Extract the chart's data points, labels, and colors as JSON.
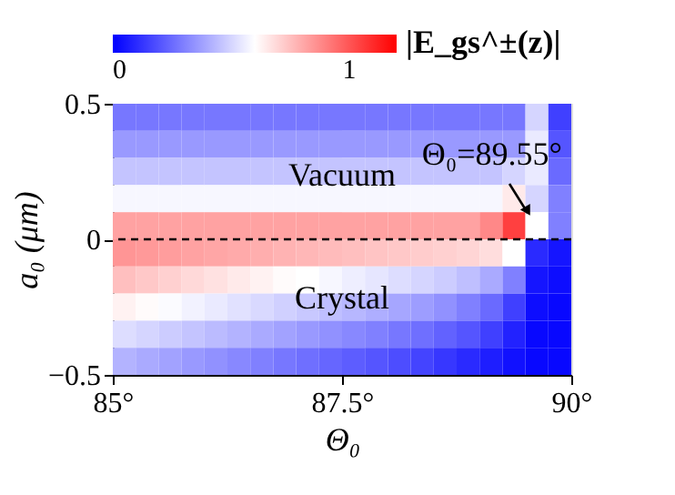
{
  "chart_data": {
    "type": "heatmap",
    "xlabel": "Θ₀",
    "ylabel": "a₀ (μm)",
    "clabel": "|E_gs^±(z)|",
    "x": [
      85.125,
      85.375,
      85.625,
      85.875,
      86.125,
      86.375,
      86.625,
      86.875,
      87.125,
      87.375,
      87.625,
      87.875,
      88.125,
      88.375,
      88.625,
      88.875,
      89.125,
      89.375,
      89.625,
      89.875
    ],
    "y": [
      0.45,
      0.35,
      0.25,
      0.15,
      0.05,
      -0.05,
      -0.15,
      -0.25,
      -0.35,
      -0.45
    ],
    "cells": [
      [
        0.28,
        0.28,
        0.28,
        0.28,
        0.28,
        0.28,
        0.28,
        0.28,
        0.28,
        0.28,
        0.28,
        0.28,
        0.28,
        0.28,
        0.28,
        0.28,
        0.28,
        0.28,
        0.5,
        0.15
      ],
      [
        0.36,
        0.36,
        0.36,
        0.36,
        0.36,
        0.36,
        0.36,
        0.36,
        0.36,
        0.36,
        0.36,
        0.36,
        0.36,
        0.36,
        0.36,
        0.36,
        0.36,
        0.36,
        0.55,
        0.2
      ],
      [
        0.46,
        0.46,
        0.46,
        0.46,
        0.46,
        0.46,
        0.46,
        0.46,
        0.46,
        0.46,
        0.46,
        0.46,
        0.46,
        0.46,
        0.46,
        0.46,
        0.46,
        0.5,
        0.55,
        0.25
      ],
      [
        0.58,
        0.58,
        0.58,
        0.58,
        0.58,
        0.58,
        0.58,
        0.58,
        0.58,
        0.58,
        0.58,
        0.58,
        0.58,
        0.58,
        0.58,
        0.58,
        0.58,
        0.65,
        0.5,
        0.3
      ],
      [
        0.82,
        0.82,
        0.82,
        0.82,
        0.82,
        0.82,
        0.82,
        0.82,
        0.82,
        0.82,
        0.82,
        0.82,
        0.82,
        0.82,
        0.82,
        0.82,
        0.88,
        1.05,
        0.6,
        0.3
      ],
      [
        0.85,
        0.84,
        0.83,
        0.82,
        0.81,
        0.8,
        0.79,
        0.78,
        0.77,
        0.76,
        0.75,
        0.74,
        0.73,
        0.72,
        0.71,
        0.7,
        0.68,
        0.6,
        0.1,
        0.05
      ],
      [
        0.75,
        0.73,
        0.71,
        0.69,
        0.67,
        0.65,
        0.63,
        0.61,
        0.6,
        0.58,
        0.56,
        0.54,
        0.52,
        0.5,
        0.48,
        0.45,
        0.4,
        0.3,
        0.05,
        0.03
      ],
      [
        0.63,
        0.61,
        0.59,
        0.57,
        0.55,
        0.53,
        0.51,
        0.49,
        0.47,
        0.45,
        0.43,
        0.41,
        0.39,
        0.37,
        0.34,
        0.3,
        0.25,
        0.15,
        0.03,
        0.02
      ],
      [
        0.52,
        0.5,
        0.48,
        0.46,
        0.44,
        0.42,
        0.4,
        0.38,
        0.36,
        0.34,
        0.32,
        0.3,
        0.28,
        0.26,
        0.23,
        0.2,
        0.15,
        0.08,
        0.02,
        0.02
      ],
      [
        0.42,
        0.4,
        0.38,
        0.36,
        0.34,
        0.32,
        0.3,
        0.28,
        0.26,
        0.24,
        0.22,
        0.2,
        0.18,
        0.16,
        0.13,
        0.1,
        0.07,
        0.04,
        0.02,
        0.02
      ]
    ],
    "colors": [
      "#0000ff",
      "#ffffff",
      "#ff0000"
    ],
    "clim": [
      0,
      1.2
    ],
    "cticks": [
      0,
      1
    ],
    "xlim": [
      85,
      90
    ],
    "xticks": [
      {
        "value": 85,
        "label": "85°"
      },
      {
        "value": 87.5,
        "label": "87.5°"
      },
      {
        "value": 90,
        "label": "90°"
      }
    ],
    "ylim": [
      -0.5,
      0.5
    ],
    "yticks": [
      0.5,
      0,
      -0.5
    ],
    "ref_lines": [
      {
        "axis": "y",
        "value": 0,
        "color": "#000000",
        "line_style": "dashed"
      }
    ],
    "annotations": [
      "Θ₀=89.55°",
      "Vacuum",
      "Crystal"
    ],
    "grid": false
  }
}
